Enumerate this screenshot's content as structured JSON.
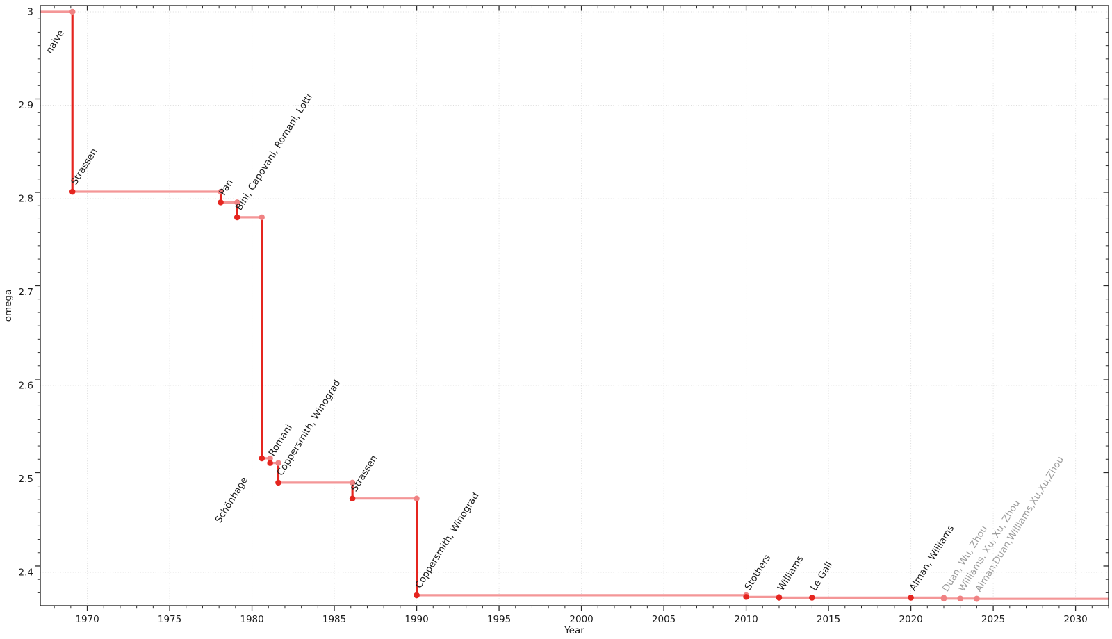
{
  "chart_data": {
    "type": "line",
    "line_shape": "step-post",
    "title": "",
    "xlabel": "Year",
    "ylabel": "omega",
    "xlim": [
      1967.15,
      2032.0
    ],
    "ylim": [
      2.3643,
      3.0067
    ],
    "grid": "dotted",
    "legend": "none",
    "x_major_ticks": [
      1970,
      1975,
      1980,
      1985,
      1990,
      1995,
      2000,
      2005,
      2010,
      2015,
      2020,
      2025,
      2030
    ],
    "x_tick_labels": [
      "1970",
      "1975",
      "1980",
      "1985",
      "1990",
      "1995",
      "2000",
      "2005",
      "2010",
      "2015",
      "2020",
      "2025",
      "2030"
    ],
    "x_minor_tick_interval": 1,
    "y_major_ticks": [
      3,
      2.9,
      2.8,
      2.7,
      2.6,
      2.5,
      2.4
    ],
    "y_tick_labels": [
      "3",
      "2.9",
      "2.8",
      "2.7",
      "2.6",
      "2.5",
      "2.4"
    ],
    "y_minor_divisions": 7,
    "colors": {
      "step_line": "#f49697",
      "drop_line": "#e5251f",
      "highlight_marker": "#e5251f",
      "corner_marker": "#f08283",
      "label_dark": "#1c1c1c",
      "label_gray": "#9d9d9d",
      "grid": "#dcdcdc",
      "axis": "#2a2a2a",
      "background": "#ffffff"
    },
    "points": [
      {
        "name": "naive",
        "year": 1967.15,
        "omega": 3.0,
        "marker": "none",
        "label_style": "dark"
      },
      {
        "name": "Strassen",
        "year": 1969.1,
        "omega": 2.8074,
        "marker": "red",
        "label_style": "dark"
      },
      {
        "name": "Pan",
        "year": 1978.1,
        "omega": 2.796,
        "marker": "red",
        "label_style": "dark"
      },
      {
        "name": "Bini, Capovani, Romani, Lotti",
        "year": 1979.1,
        "omega": 2.78,
        "marker": "red",
        "label_style": "dark"
      },
      {
        "name": "Schönhage",
        "year": 1980.6,
        "omega": 2.522,
        "marker": "red",
        "label_style": "dark"
      },
      {
        "name": "Romani",
        "year": 1981.1,
        "omega": 2.517,
        "marker": "red",
        "label_style": "dark"
      },
      {
        "name": "Coppersmith, Winograd",
        "year": 1981.6,
        "omega": 2.496,
        "marker": "red",
        "label_style": "dark"
      },
      {
        "name": "Strassen",
        "year": 1986.1,
        "omega": 2.479,
        "marker": "red",
        "label_style": "dark"
      },
      {
        "name": "Coppersmith, Winograd",
        "year": 1990.0,
        "omega": 2.3755,
        "marker": "red",
        "label_style": "dark"
      },
      {
        "name": "Stothers",
        "year": 2010.0,
        "omega": 2.3737,
        "marker": "red",
        "label_style": "dark"
      },
      {
        "name": "Williams",
        "year": 2012.0,
        "omega": 2.3729,
        "marker": "red",
        "label_style": "dark"
      },
      {
        "name": "Le Gall",
        "year": 2014.0,
        "omega": 2.3729,
        "marker": "red",
        "label_style": "dark"
      },
      {
        "name": "Alman, Williams",
        "year": 2020.0,
        "omega": 2.3729,
        "marker": "red",
        "label_style": "dark"
      },
      {
        "name": "Duan, Wu, Zhou",
        "year": 2022.0,
        "omega": 2.3719,
        "marker": "pink",
        "label_style": "gray"
      },
      {
        "name": "Williams, Xu, Xu, Zhou",
        "year": 2023.0,
        "omega": 2.3719,
        "marker": "pink",
        "label_style": "gray"
      },
      {
        "name": "Alman,Duan,Williams,Xu,Xu,Zhou",
        "year": 2024.0,
        "omega": 2.3716,
        "marker": "pink",
        "label_style": "gray"
      }
    ]
  }
}
